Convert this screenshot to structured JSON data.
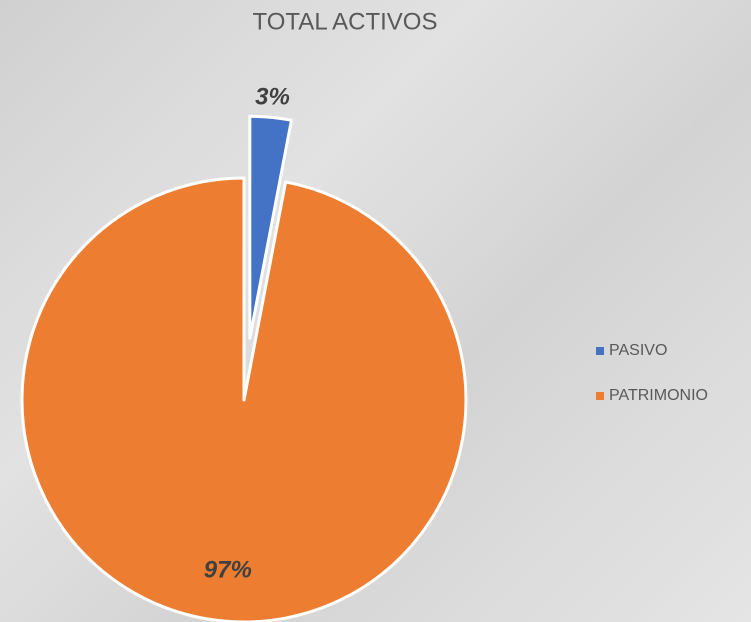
{
  "chart_data": {
    "type": "pie",
    "title": "TOTAL ACTIVOS",
    "categories": [
      "PASIVO",
      "PATRIMONIO"
    ],
    "values": [
      3,
      97
    ],
    "value_labels": [
      "3%",
      "97%"
    ],
    "colors": [
      "#4472c4",
      "#ed7d31"
    ],
    "legend": "right"
  }
}
